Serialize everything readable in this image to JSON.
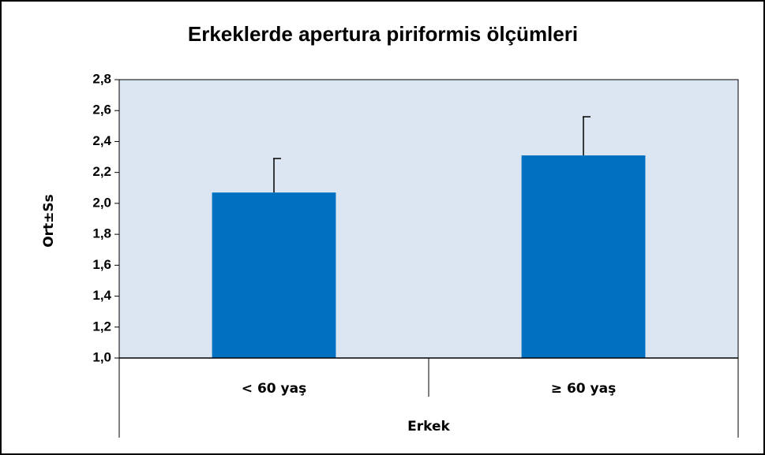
{
  "chart_data": {
    "type": "bar",
    "title": "Erkeklerde apertura piriformis ölçümleri",
    "y_label": "Ort±Ss",
    "x_label": "Erkek",
    "categories": [
      "< 60 yaş",
      "≥ 60 yaş"
    ],
    "values": [
      2.07,
      2.31
    ],
    "errors": [
      0.22,
      0.25
    ],
    "color": "#0070c0",
    "plot_background": "#dce6f2",
    "ylim": [
      1.0,
      2.8
    ],
    "yticks": [
      {
        "value": 1.0,
        "label": "1,0"
      },
      {
        "value": 1.2,
        "label": "1,2"
      },
      {
        "value": 1.4,
        "label": "1,4"
      },
      {
        "value": 1.6,
        "label": "1,6"
      },
      {
        "value": 1.8,
        "label": "1,8"
      },
      {
        "value": 2.0,
        "label": "2,0"
      },
      {
        "value": 2.2,
        "label": "2,2"
      },
      {
        "value": 2.4,
        "label": "2,4"
      },
      {
        "value": 2.6,
        "label": "2,6"
      },
      {
        "value": 2.8,
        "label": "2,8"
      }
    ]
  }
}
